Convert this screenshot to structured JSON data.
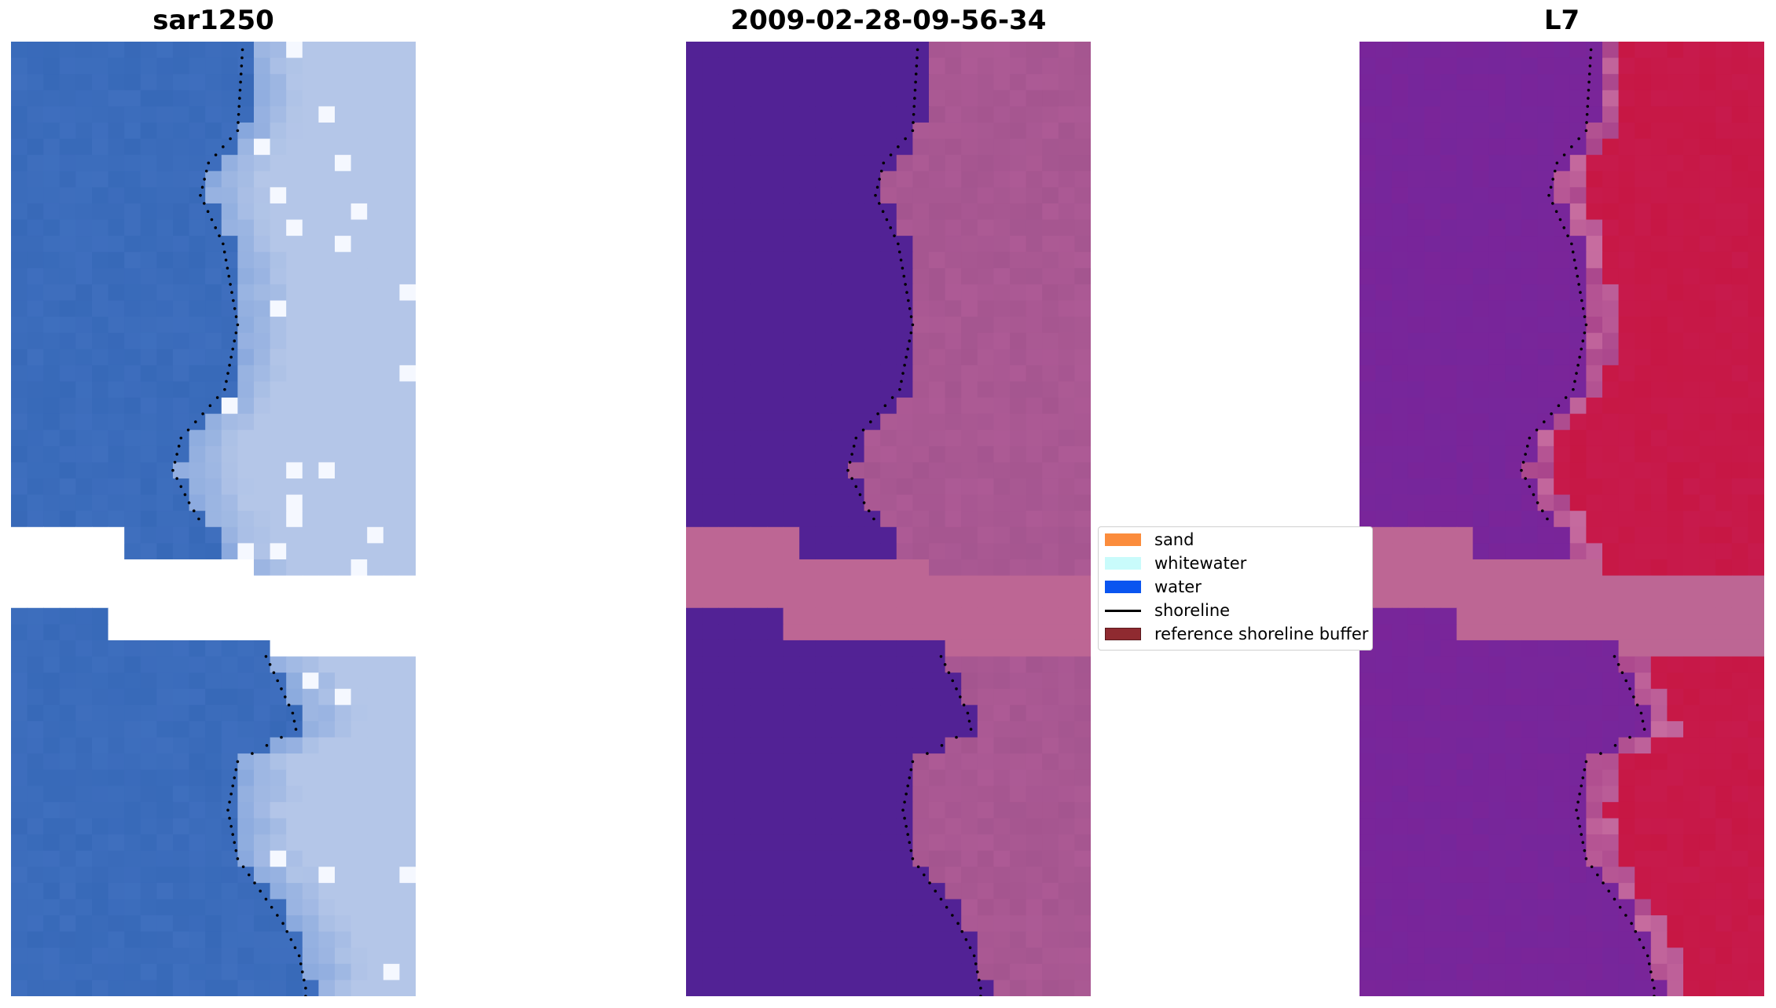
{
  "panels": [
    {
      "title": "sar1250",
      "kind": "rgb"
    },
    {
      "title": "2009-02-28-09-56-34",
      "kind": "classified"
    },
    {
      "title": "L7",
      "kind": "index"
    }
  ],
  "legend": {
    "items": [
      {
        "label": "sand",
        "type": "patch",
        "color": "#fb8c3c"
      },
      {
        "label": "whitewater",
        "type": "patch",
        "color": "#c9fbfb"
      },
      {
        "label": "water",
        "type": "patch",
        "color": "#0a55f0"
      },
      {
        "label": "shoreline",
        "type": "line",
        "color": "#000000"
      },
      {
        "label": "reference shoreline buffer",
        "type": "patch",
        "color": "#8f2a30"
      }
    ]
  },
  "colors": {
    "rgb_water": "#3769b8",
    "rgb_land": "#b4c6e8",
    "class_water": "#522295",
    "class_land": "#a4558f",
    "class_nodata": "#bd6694",
    "index_water": "#7a2599",
    "index_land": "#c71a4c",
    "index_nodata": "#bd6694"
  }
}
